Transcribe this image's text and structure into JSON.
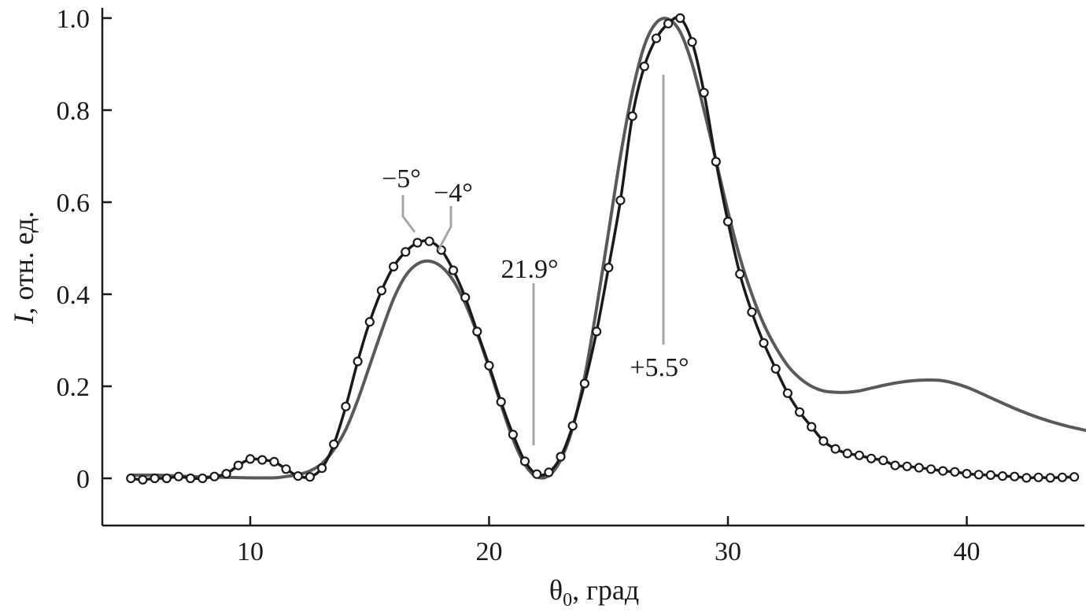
{
  "chart_data": {
    "type": "line",
    "xlabel_main": "θ",
    "xlabel_sub": "0",
    "xlabel_rest": ", град",
    "ylabel_italic": "I",
    "ylabel_rest": ", отн. ед.",
    "xlim": [
      4.5,
      45
    ],
    "ylim": [
      -0.1,
      1.02
    ],
    "xticks": [
      10,
      20,
      30,
      40
    ],
    "xtick_labels": [
      "10",
      "20",
      "30",
      "40"
    ],
    "yticks": [
      0,
      0.2,
      0.4,
      0.6,
      0.8,
      1.0
    ],
    "ytick_labels": [
      "0",
      "0.2",
      "0.4",
      "0.6",
      "0.8",
      "1.0"
    ],
    "grid": false,
    "series": [
      {
        "style": "line-with-circle-markers",
        "color": "#1a1a1a",
        "x": [
          5,
          5.5,
          6,
          6.5,
          7,
          7.5,
          8,
          8.5,
          9,
          9.5,
          10,
          10.5,
          11,
          11.5,
          12,
          12.5,
          13,
          13.5,
          14,
          14.5,
          15,
          15.5,
          16,
          16.5,
          17,
          17.5,
          18,
          18.5,
          19,
          19.5,
          20,
          20.5,
          21,
          21.5,
          22,
          22.5,
          23,
          23.5,
          24,
          24.5,
          25,
          25.5,
          26,
          26.5,
          27,
          27.5,
          28,
          28.5,
          29,
          29.5,
          30,
          30.5,
          31,
          31.5,
          32,
          32.5,
          33,
          33.5,
          34,
          34.5,
          35,
          35.5,
          36,
          36.5,
          37,
          37.5,
          38,
          38.5,
          39,
          39.5,
          40,
          40.5,
          41,
          41.5,
          42,
          42.5,
          43,
          43.5,
          44,
          44.5
        ],
        "values": [
          0.0,
          -0.003,
          0.0,
          0.0,
          0.004,
          0.0,
          0.0,
          0.004,
          0.01,
          0.028,
          0.042,
          0.04,
          0.036,
          0.02,
          0.005,
          0.003,
          0.022,
          0.074,
          0.156,
          0.254,
          0.34,
          0.408,
          0.46,
          0.492,
          0.512,
          0.515,
          0.496,
          0.452,
          0.393,
          0.319,
          0.245,
          0.166,
          0.095,
          0.037,
          0.009,
          0.013,
          0.047,
          0.114,
          0.206,
          0.319,
          0.458,
          0.604,
          0.787,
          0.895,
          0.956,
          0.988,
          1.0,
          0.948,
          0.838,
          0.688,
          0.558,
          0.444,
          0.361,
          0.294,
          0.238,
          0.185,
          0.144,
          0.112,
          0.081,
          0.064,
          0.054,
          0.05,
          0.043,
          0.039,
          0.028,
          0.026,
          0.023,
          0.02,
          0.016,
          0.014,
          0.01,
          0.008,
          0.007,
          0.005,
          0.004,
          0.001,
          0.002,
          0.001,
          0.002,
          0.003
        ]
      },
      {
        "style": "line",
        "color": "#595959",
        "x": [
          5,
          6,
          7,
          8,
          9,
          10,
          11,
          11.5,
          12,
          12.5,
          13,
          13.5,
          14,
          14.5,
          15,
          15.5,
          16,
          16.5,
          17,
          17.5,
          18,
          18.5,
          19,
          19.5,
          20,
          20.5,
          21,
          21.5,
          22,
          22.5,
          23,
          23.5,
          24,
          24.5,
          25,
          25.5,
          26,
          26.5,
          27,
          27.5,
          28,
          28.5,
          29,
          29.5,
          30,
          30.5,
          31,
          31.5,
          32,
          32.5,
          33,
          33.5,
          34,
          34.5,
          35,
          35.5,
          36,
          37,
          38,
          39,
          40,
          41,
          42,
          43,
          44,
          45
        ],
        "values": [
          0.007,
          0.007,
          0.005,
          0.003,
          0.002,
          0.001,
          0.001,
          0.004,
          0.008,
          0.016,
          0.032,
          0.062,
          0.106,
          0.17,
          0.245,
          0.32,
          0.39,
          0.44,
          0.466,
          0.472,
          0.46,
          0.43,
          0.38,
          0.315,
          0.24,
          0.16,
          0.085,
          0.03,
          0.003,
          0.006,
          0.04,
          0.11,
          0.22,
          0.37,
          0.535,
          0.7,
          0.84,
          0.94,
          0.99,
          0.998,
          0.97,
          0.9,
          0.8,
          0.69,
          0.58,
          0.48,
          0.4,
          0.335,
          0.285,
          0.245,
          0.218,
          0.2,
          0.19,
          0.187,
          0.187,
          0.19,
          0.196,
          0.207,
          0.213,
          0.212,
          0.198,
          0.175,
          0.152,
          0.132,
          0.116,
          0.104
        ]
      }
    ],
    "annotations": [
      {
        "text": "−5°",
        "color": "#999999"
      },
      {
        "text": "−4°",
        "color": "#999999"
      },
      {
        "text": "21.9°",
        "color": "#999999"
      },
      {
        "text": "+5.5°",
        "color": "#999999"
      }
    ]
  }
}
